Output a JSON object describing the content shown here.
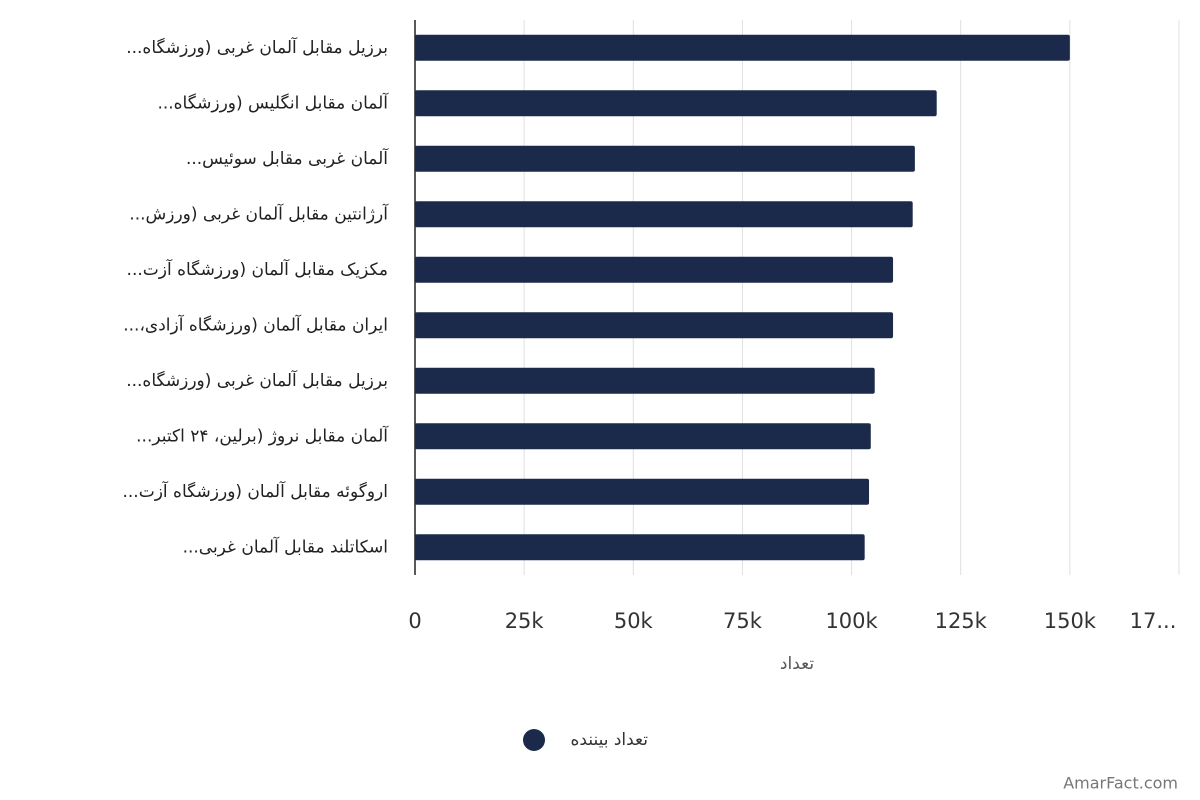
{
  "chart_data": {
    "type": "bar",
    "orientation": "horizontal",
    "categories": [
      "برزیل مقابل آلمان غربی (ورزشگاه...",
      "آلمان مقابل انگلیس (ورزشگاه...",
      "آلمان غربی مقابل سوئیس...",
      "آرژانتین مقابل آلمان غربی (ورزش...",
      "مکزیک مقابل آلمان (ورزشگاه آزت...",
      "ایران مقابل آلمان (ورزشگاه آزادی،...",
      "برزیل مقابل آلمان غربی (ورزشگاه...",
      "آلمان مقابل نروژ (برلین، ۲۴ اکتبر...",
      "اروگوئه مقابل آلمان (ورزشگاه آزت...",
      "اسکاتلند مقابل آلمان غربی..."
    ],
    "series": [
      {
        "name": "تعداد بیننده",
        "color": "#1b2a4a",
        "values": [
          150000,
          119500,
          114500,
          114000,
          109500,
          109500,
          105300,
          104400,
          104000,
          103000
        ]
      }
    ],
    "xlabel": "تعداد",
    "xlim": [
      0,
      175000
    ],
    "xticks": [
      0,
      {
        "value": 25000,
        "label": "25k"
      },
      {
        "value": 50000,
        "label": "50k"
      },
      {
        "value": 75000,
        "label": "75k"
      },
      {
        "value": 100000,
        "label": "100k"
      },
      {
        "value": 125000,
        "label": "125k"
      },
      {
        "value": 150000,
        "label": "150k"
      },
      {
        "value": 175000,
        "label": "17..."
      }
    ],
    "grid": true,
    "legend": "bottom",
    "watermark": "AmarFact.com"
  }
}
